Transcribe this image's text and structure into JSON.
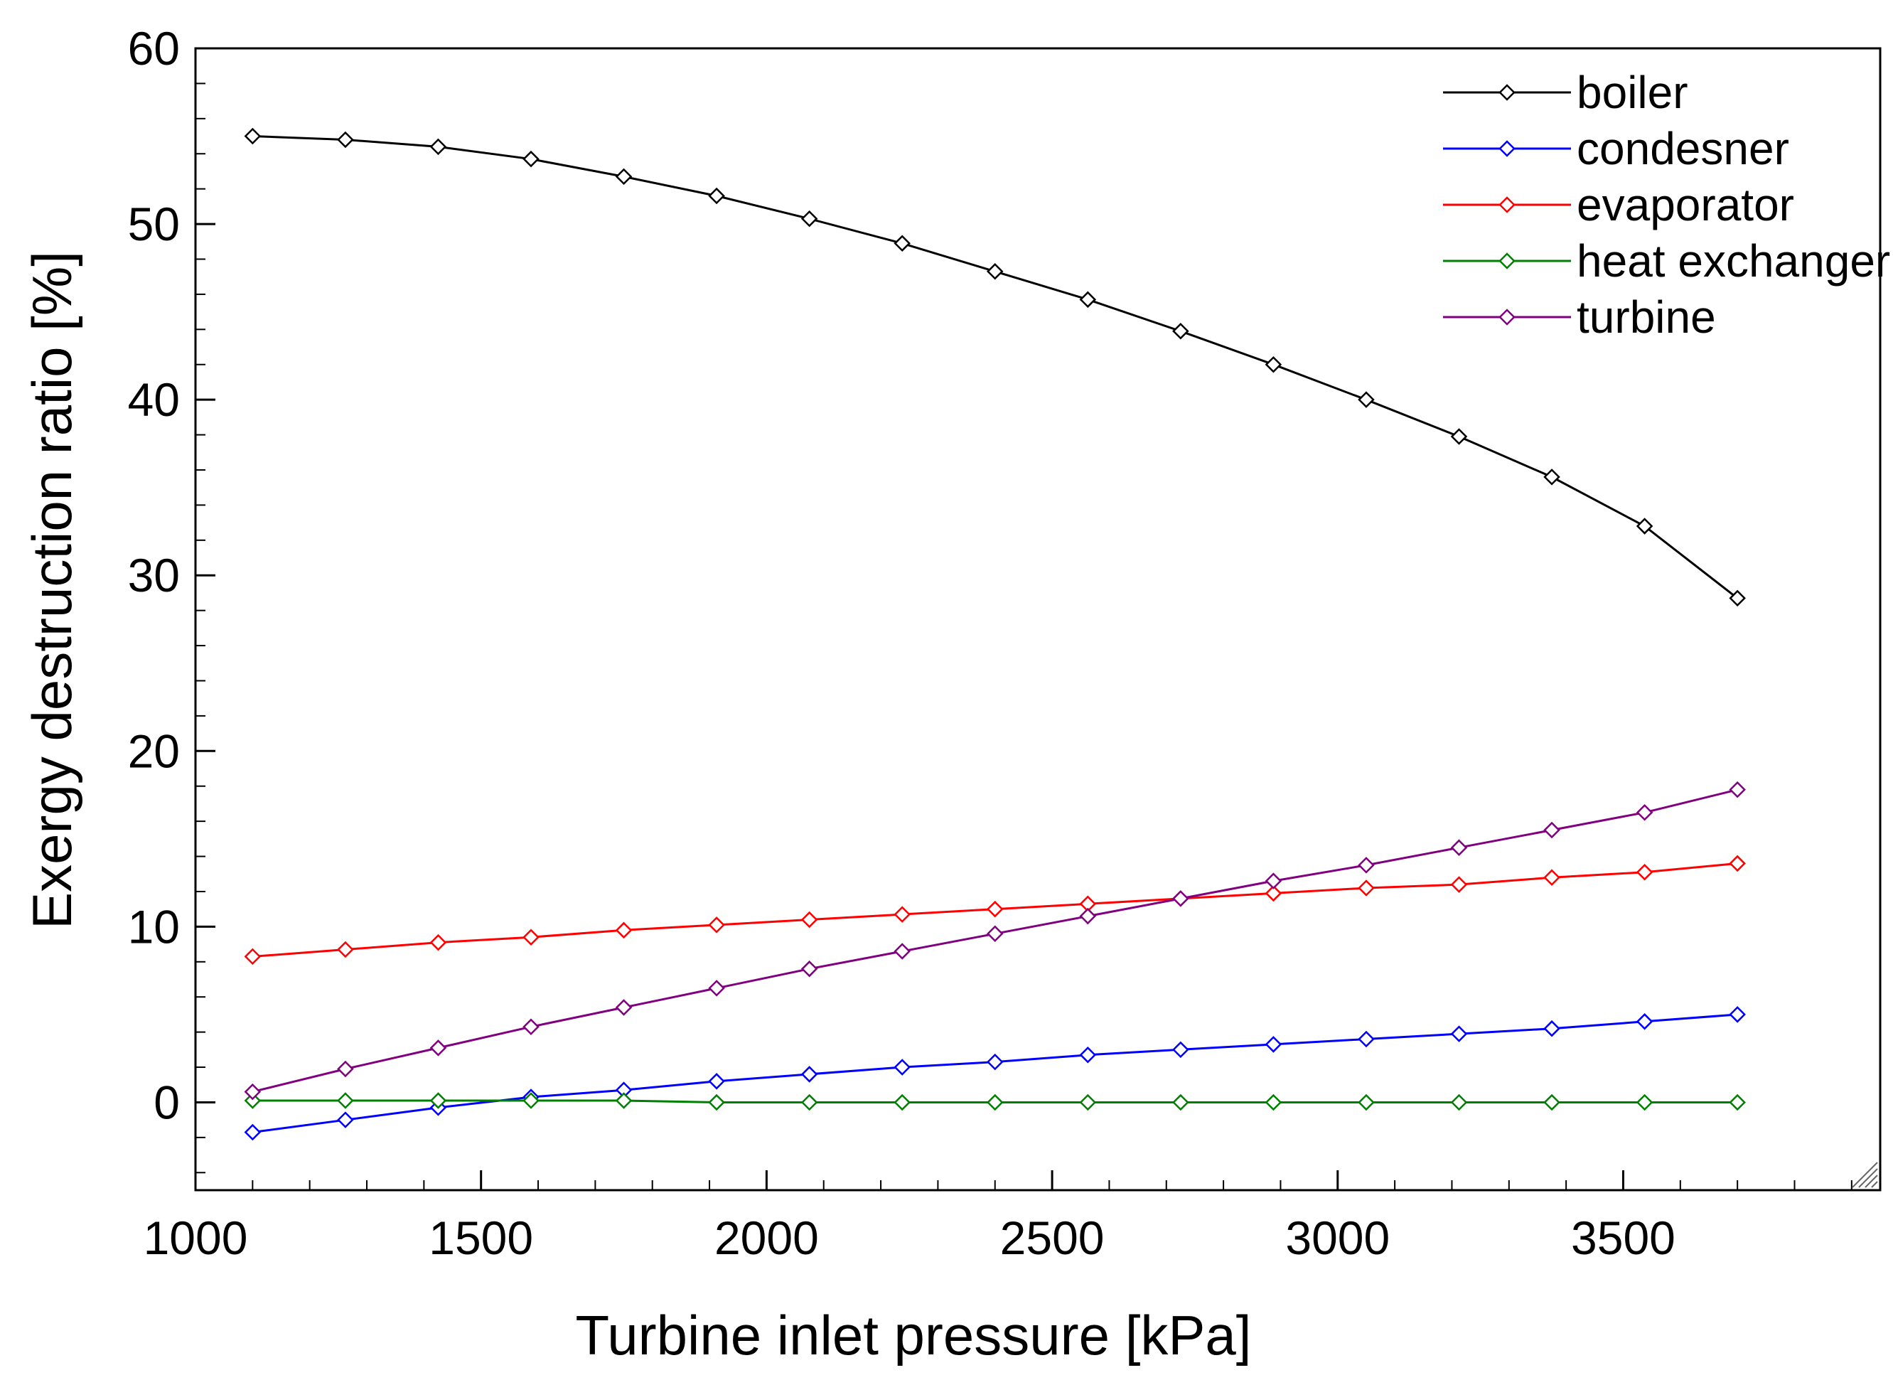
{
  "chart_data": {
    "type": "line",
    "title": "",
    "xlabel": "Turbine inlet pressure [kPa]",
    "ylabel": "Exergy destruction ratio [%]",
    "xlim": [
      1000,
      3950
    ],
    "ylim": [
      -5,
      60
    ],
    "xticks": [
      1000,
      1500,
      2000,
      2500,
      3000,
      3500
    ],
    "yticks": [
      0,
      10,
      20,
      30,
      40,
      50,
      60
    ],
    "x": [
      1100,
      1262.5,
      1425,
      1587.5,
      1750,
      1912.5,
      2075,
      2237.5,
      2400,
      2562.5,
      2725,
      2887.5,
      3050,
      3212.5,
      3375,
      3537.5,
      3700
    ],
    "legend_position": "top-right",
    "grid": false,
    "series": [
      {
        "name": "boiler",
        "color": "#000000",
        "values": [
          55.0,
          54.8,
          54.4,
          53.7,
          52.7,
          51.6,
          50.3,
          48.9,
          47.3,
          45.7,
          43.9,
          42.0,
          40.0,
          37.9,
          35.6,
          32.8,
          28.7
        ]
      },
      {
        "name": "condesner",
        "color": "#0000ff",
        "values": [
          -1.7,
          -1.0,
          -0.3,
          0.3,
          0.7,
          1.2,
          1.6,
          2.0,
          2.3,
          2.7,
          3.0,
          3.3,
          3.6,
          3.9,
          4.2,
          4.6,
          5.0
        ]
      },
      {
        "name": "evaporator",
        "color": "#ff0000",
        "values": [
          8.3,
          8.7,
          9.1,
          9.4,
          9.8,
          10.1,
          10.4,
          10.7,
          11.0,
          11.3,
          11.6,
          11.9,
          12.2,
          12.4,
          12.8,
          13.1,
          13.6
        ]
      },
      {
        "name": "heat exchanger",
        "color": "#008000",
        "values": [
          0.1,
          0.1,
          0.1,
          0.1,
          0.1,
          0.0,
          0.0,
          0.0,
          0.0,
          0.0,
          0.0,
          0.0,
          0.0,
          0.0,
          0.0,
          0.0,
          0.0
        ]
      },
      {
        "name": "turbine",
        "color": "#800080",
        "values": [
          0.6,
          1.9,
          3.1,
          4.3,
          5.4,
          6.5,
          7.6,
          8.6,
          9.6,
          10.6,
          11.6,
          12.6,
          13.5,
          14.5,
          15.5,
          16.5,
          17.8
        ]
      }
    ]
  }
}
